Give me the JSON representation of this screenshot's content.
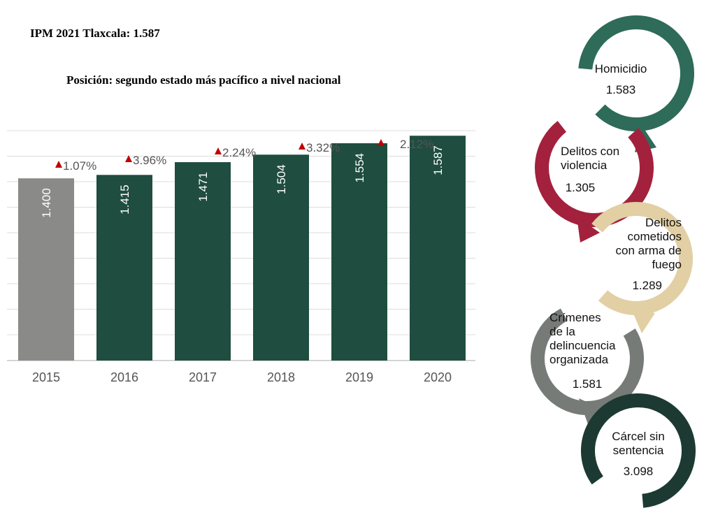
{
  "header": {
    "title": "IPM 2021 Tlaxcala: 1.587",
    "subtitle": "Posición: segundo estado más pacífico a nivel nacional"
  },
  "colors": {
    "bar_base": "#8a8a88",
    "bar_main": "#1f4d40",
    "arrow": "#c00000",
    "grid": "#dcdcdc",
    "label": "#555555"
  },
  "chart_data": {
    "type": "bar",
    "categories": [
      "2015",
      "2016",
      "2017",
      "2018",
      "2019",
      "2020"
    ],
    "values": [
      1.4,
      1.415,
      1.471,
      1.504,
      1.554,
      1.587
    ],
    "value_labels": [
      "1.400",
      "1.415",
      "1.471",
      "1.504",
      "1.554",
      "1.587"
    ],
    "change_labels": [
      "1.07%",
      "3.96%",
      "2.24%",
      "3.32%",
      "2.12%"
    ],
    "title": "",
    "xlabel": "",
    "ylabel": "",
    "ylim": [
      0.6,
      1.6
    ],
    "grid": true,
    "legend": "none"
  },
  "indicators": [
    {
      "lines": [
        "Homicidio"
      ],
      "value": "1.583",
      "color": "#2e6b59"
    },
    {
      "lines": [
        "Delitos con",
        "violencia"
      ],
      "value": "1.305",
      "color": "#a3213c"
    },
    {
      "lines": [
        "Delitos",
        "cometidos",
        "con arma de",
        "fuego"
      ],
      "value": "1.289",
      "color": "#e2cfa4"
    },
    {
      "lines": [
        "Crímenes",
        "de la",
        "delincuencia",
        "organizada"
      ],
      "value": "1.581",
      "color": "#767b78"
    },
    {
      "lines": [
        "Cárcel sin",
        "sentencia"
      ],
      "value": "3.098",
      "color": "#1c3a32"
    }
  ]
}
